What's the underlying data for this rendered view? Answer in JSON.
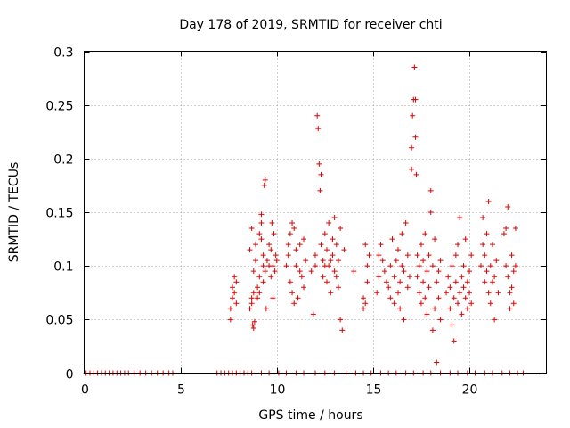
{
  "chart_data": {
    "type": "scatter",
    "title": "Day 178 of 2019, SRMTID for receiver chti",
    "xlabel": "GPS time / hours",
    "ylabel": "SRMTID / TECUs",
    "xlim": [
      0,
      24
    ],
    "ylim": [
      0,
      0.3
    ],
    "grid": true,
    "marker": "plus",
    "color": "#e00000",
    "x_ticks": [
      0,
      5,
      10,
      15,
      20
    ],
    "x_tick_labels": [
      "0",
      "5",
      "10",
      "15",
      "20"
    ],
    "y_ticks": [
      0,
      0.05,
      0.1,
      0.15,
      0.2,
      0.25,
      0.3
    ],
    "y_tick_labels": [
      "0",
      "0.05",
      "0.1",
      "0.15",
      "0.2",
      "0.25",
      "0.3"
    ],
    "series": [
      {
        "name": "SRMTID",
        "points": [
          [
            0.1,
            0
          ],
          [
            0.3,
            0
          ],
          [
            0.5,
            0
          ],
          [
            0.7,
            0
          ],
          [
            0.9,
            0
          ],
          [
            1.1,
            0
          ],
          [
            1.3,
            0
          ],
          [
            1.5,
            0
          ],
          [
            1.7,
            0
          ],
          [
            1.9,
            0
          ],
          [
            2.1,
            0
          ],
          [
            2.3,
            0
          ],
          [
            2.6,
            0
          ],
          [
            2.9,
            0
          ],
          [
            3.2,
            0
          ],
          [
            3.5,
            0
          ],
          [
            3.8,
            0
          ],
          [
            4.1,
            0
          ],
          [
            4.4,
            0
          ],
          [
            4.6,
            0
          ],
          [
            6.9,
            0
          ],
          [
            7.1,
            0
          ],
          [
            7.3,
            0
          ],
          [
            7.5,
            0
          ],
          [
            7.7,
            0
          ],
          [
            7.9,
            0
          ],
          [
            8.1,
            0
          ],
          [
            8.3,
            0
          ],
          [
            8.5,
            0
          ],
          [
            8.7,
            0
          ],
          [
            9.2,
            0
          ],
          [
            9.6,
            0
          ],
          [
            10.1,
            0
          ],
          [
            10.5,
            0
          ],
          [
            11.0,
            0
          ],
          [
            11.4,
            0
          ],
          [
            12.0,
            0
          ],
          [
            12.5,
            0
          ],
          [
            13.0,
            0
          ],
          [
            13.6,
            0
          ],
          [
            14.1,
            0
          ],
          [
            14.5,
            0
          ],
          [
            14.9,
            0
          ],
          [
            15.4,
            0
          ],
          [
            15.8,
            0
          ],
          [
            16.2,
            0
          ],
          [
            16.7,
            0
          ],
          [
            17.1,
            0
          ],
          [
            17.6,
            0
          ],
          [
            18.0,
            0
          ],
          [
            18.5,
            0
          ],
          [
            19.0,
            0
          ],
          [
            19.4,
            0
          ],
          [
            19.9,
            0
          ],
          [
            20.3,
            0
          ],
          [
            20.8,
            0
          ],
          [
            21.2,
            0
          ],
          [
            21.7,
            0
          ],
          [
            22.1,
            0
          ],
          [
            22.5,
            0
          ],
          [
            22.8,
            0
          ],
          [
            7.6,
            0.05
          ],
          [
            7.6,
            0.06
          ],
          [
            7.7,
            0.07
          ],
          [
            7.7,
            0.08
          ],
          [
            7.8,
            0.09
          ],
          [
            7.8,
            0.075
          ],
          [
            7.9,
            0.085
          ],
          [
            7.9,
            0.065
          ],
          [
            8.6,
            0.06
          ],
          [
            8.7,
            0.065
          ],
          [
            8.7,
            0.07
          ],
          [
            8.8,
            0.075
          ],
          [
            8.8,
            0.095
          ],
          [
            8.9,
            0.105
          ],
          [
            8.9,
            0.12
          ],
          [
            8.6,
            0.115
          ],
          [
            8.7,
            0.135
          ],
          [
            8.75,
            0.045
          ],
          [
            8.8,
            0.042
          ],
          [
            8.85,
            0.048
          ],
          [
            9.0,
            0.08
          ],
          [
            9.0,
            0.07
          ],
          [
            9.1,
            0.075
          ],
          [
            9.1,
            0.09
          ],
          [
            9.1,
            0.13
          ],
          [
            9.2,
            0.125
          ],
          [
            9.2,
            0.14
          ],
          [
            9.2,
            0.148
          ],
          [
            9.3,
            0.1
          ],
          [
            9.3,
            0.11
          ],
          [
            9.3,
            0.085
          ],
          [
            9.35,
            0.175
          ],
          [
            9.4,
            0.18
          ],
          [
            9.4,
            0.095
          ],
          [
            9.45,
            0.06
          ],
          [
            9.5,
            0.105
          ],
          [
            9.6,
            0.1
          ],
          [
            9.6,
            0.12
          ],
          [
            9.7,
            0.115
          ],
          [
            9.7,
            0.09
          ],
          [
            9.75,
            0.14
          ],
          [
            9.8,
            0.1
          ],
          [
            9.8,
            0.07
          ],
          [
            9.85,
            0.13
          ],
          [
            9.9,
            0.095
          ],
          [
            9.95,
            0.11
          ],
          [
            10.0,
            0.105
          ],
          [
            10.5,
            0.1
          ],
          [
            10.6,
            0.11
          ],
          [
            10.6,
            0.12
          ],
          [
            10.7,
            0.13
          ],
          [
            10.7,
            0.085
          ],
          [
            10.8,
            0.075
          ],
          [
            10.8,
            0.14
          ],
          [
            10.9,
            0.135
          ],
          [
            10.9,
            0.065
          ],
          [
            11.0,
            0.1
          ],
          [
            11.0,
            0.115
          ],
          [
            11.1,
            0.07
          ],
          [
            11.2,
            0.12
          ],
          [
            11.2,
            0.095
          ],
          [
            11.3,
            0.09
          ],
          [
            11.4,
            0.125
          ],
          [
            11.4,
            0.08
          ],
          [
            11.5,
            0.105
          ],
          [
            11.8,
            0.095
          ],
          [
            11.9,
            0.055
          ],
          [
            12.0,
            0.1
          ],
          [
            12.0,
            0.11
          ],
          [
            12.1,
            0.24
          ],
          [
            12.15,
            0.228
          ],
          [
            12.2,
            0.195
          ],
          [
            12.25,
            0.17
          ],
          [
            12.3,
            0.185
          ],
          [
            12.3,
            0.12
          ],
          [
            12.4,
            0.105
          ],
          [
            12.4,
            0.09
          ],
          [
            12.5,
            0.1
          ],
          [
            12.5,
            0.13
          ],
          [
            12.6,
            0.085
          ],
          [
            12.6,
            0.115
          ],
          [
            12.7,
            0.14
          ],
          [
            12.7,
            0.1
          ],
          [
            12.8,
            0.105
          ],
          [
            12.8,
            0.075
          ],
          [
            12.9,
            0.11
          ],
          [
            12.9,
            0.125
          ],
          [
            13.0,
            0.095
          ],
          [
            13.0,
            0.145
          ],
          [
            13.1,
            0.09
          ],
          [
            13.1,
            0.12
          ],
          [
            13.2,
            0.105
          ],
          [
            13.2,
            0.08
          ],
          [
            13.3,
            0.135
          ],
          [
            13.3,
            0.05
          ],
          [
            13.4,
            0.04
          ],
          [
            13.5,
            0.115
          ],
          [
            14.0,
            0.095
          ],
          [
            14.5,
            0.07
          ],
          [
            14.5,
            0.06
          ],
          [
            14.6,
            0.065
          ],
          [
            14.6,
            0.12
          ],
          [
            14.7,
            0.1
          ],
          [
            14.7,
            0.085
          ],
          [
            14.8,
            0.11
          ],
          [
            15.2,
            0.075
          ],
          [
            15.3,
            0.09
          ],
          [
            15.3,
            0.11
          ],
          [
            15.4,
            0.12
          ],
          [
            15.5,
            0.105
          ],
          [
            15.6,
            0.095
          ],
          [
            15.7,
            0.085
          ],
          [
            15.8,
            0.08
          ],
          [
            15.9,
            0.1
          ],
          [
            15.9,
            0.07
          ],
          [
            16.0,
            0.125
          ],
          [
            16.1,
            0.09
          ],
          [
            16.1,
            0.065
          ],
          [
            16.2,
            0.105
          ],
          [
            16.3,
            0.075
          ],
          [
            16.3,
            0.115
          ],
          [
            16.4,
            0.085
          ],
          [
            16.4,
            0.06
          ],
          [
            16.5,
            0.1
          ],
          [
            16.5,
            0.13
          ],
          [
            16.6,
            0.095
          ],
          [
            16.6,
            0.05
          ],
          [
            16.7,
            0.14
          ],
          [
            16.8,
            0.11
          ],
          [
            16.8,
            0.08
          ],
          [
            16.9,
            0.09
          ],
          [
            17.0,
            0.19
          ],
          [
            17.0,
            0.21
          ],
          [
            17.05,
            0.24
          ],
          [
            17.1,
            0.255
          ],
          [
            17.15,
            0.285
          ],
          [
            17.2,
            0.255
          ],
          [
            17.2,
            0.22
          ],
          [
            17.25,
            0.185
          ],
          [
            17.3,
            0.11
          ],
          [
            17.3,
            0.09
          ],
          [
            17.4,
            0.075
          ],
          [
            17.4,
            0.1
          ],
          [
            17.5,
            0.065
          ],
          [
            17.5,
            0.12
          ],
          [
            17.6,
            0.085
          ],
          [
            17.6,
            0.105
          ],
          [
            17.7,
            0.07
          ],
          [
            17.7,
            0.13
          ],
          [
            17.8,
            0.095
          ],
          [
            17.8,
            0.055
          ],
          [
            17.9,
            0.08
          ],
          [
            17.9,
            0.11
          ],
          [
            18.0,
            0.15
          ],
          [
            18.0,
            0.17
          ],
          [
            18.1,
            0.1
          ],
          [
            18.1,
            0.04
          ],
          [
            18.2,
            0.06
          ],
          [
            18.2,
            0.125
          ],
          [
            18.3,
            0.085
          ],
          [
            18.3,
            0.01
          ],
          [
            18.4,
            0.07
          ],
          [
            18.4,
            0.095
          ],
          [
            18.5,
            0.105
          ],
          [
            18.5,
            0.05
          ],
          [
            18.8,
            0.075
          ],
          [
            18.9,
            0.09
          ],
          [
            19.0,
            0.08
          ],
          [
            19.0,
            0.06
          ],
          [
            19.1,
            0.1
          ],
          [
            19.1,
            0.045
          ],
          [
            19.2,
            0.07
          ],
          [
            19.2,
            0.03
          ],
          [
            19.3,
            0.085
          ],
          [
            19.3,
            0.11
          ],
          [
            19.4,
            0.065
          ],
          [
            19.4,
            0.12
          ],
          [
            19.5,
            0.075
          ],
          [
            19.5,
            0.145
          ],
          [
            19.6,
            0.09
          ],
          [
            19.6,
            0.055
          ],
          [
            19.7,
            0.08
          ],
          [
            19.7,
            0.1
          ],
          [
            19.8,
            0.07
          ],
          [
            19.8,
            0.125
          ],
          [
            19.9,
            0.085
          ],
          [
            19.9,
            0.06
          ],
          [
            20.0,
            0.095
          ],
          [
            20.0,
            0.075
          ],
          [
            20.1,
            0.11
          ],
          [
            20.1,
            0.065
          ],
          [
            20.6,
            0.1
          ],
          [
            20.7,
            0.12
          ],
          [
            20.7,
            0.145
          ],
          [
            20.8,
            0.11
          ],
          [
            20.8,
            0.085
          ],
          [
            20.9,
            0.095
          ],
          [
            20.9,
            0.13
          ],
          [
            21.0,
            0.16
          ],
          [
            21.0,
            0.075
          ],
          [
            21.1,
            0.065
          ],
          [
            21.1,
            0.1
          ],
          [
            21.2,
            0.085
          ],
          [
            21.2,
            0.12
          ],
          [
            21.3,
            0.05
          ],
          [
            21.3,
            0.09
          ],
          [
            21.4,
            0.105
          ],
          [
            21.5,
            0.075
          ],
          [
            21.8,
            0.13
          ],
          [
            21.9,
            0.135
          ],
          [
            21.9,
            0.1
          ],
          [
            22.0,
            0.155
          ],
          [
            22.0,
            0.09
          ],
          [
            22.1,
            0.075
          ],
          [
            22.1,
            0.06
          ],
          [
            22.2,
            0.11
          ],
          [
            22.2,
            0.08
          ],
          [
            22.3,
            0.095
          ],
          [
            22.3,
            0.065
          ],
          [
            22.4,
            0.135
          ],
          [
            22.4,
            0.1
          ]
        ]
      }
    ]
  }
}
